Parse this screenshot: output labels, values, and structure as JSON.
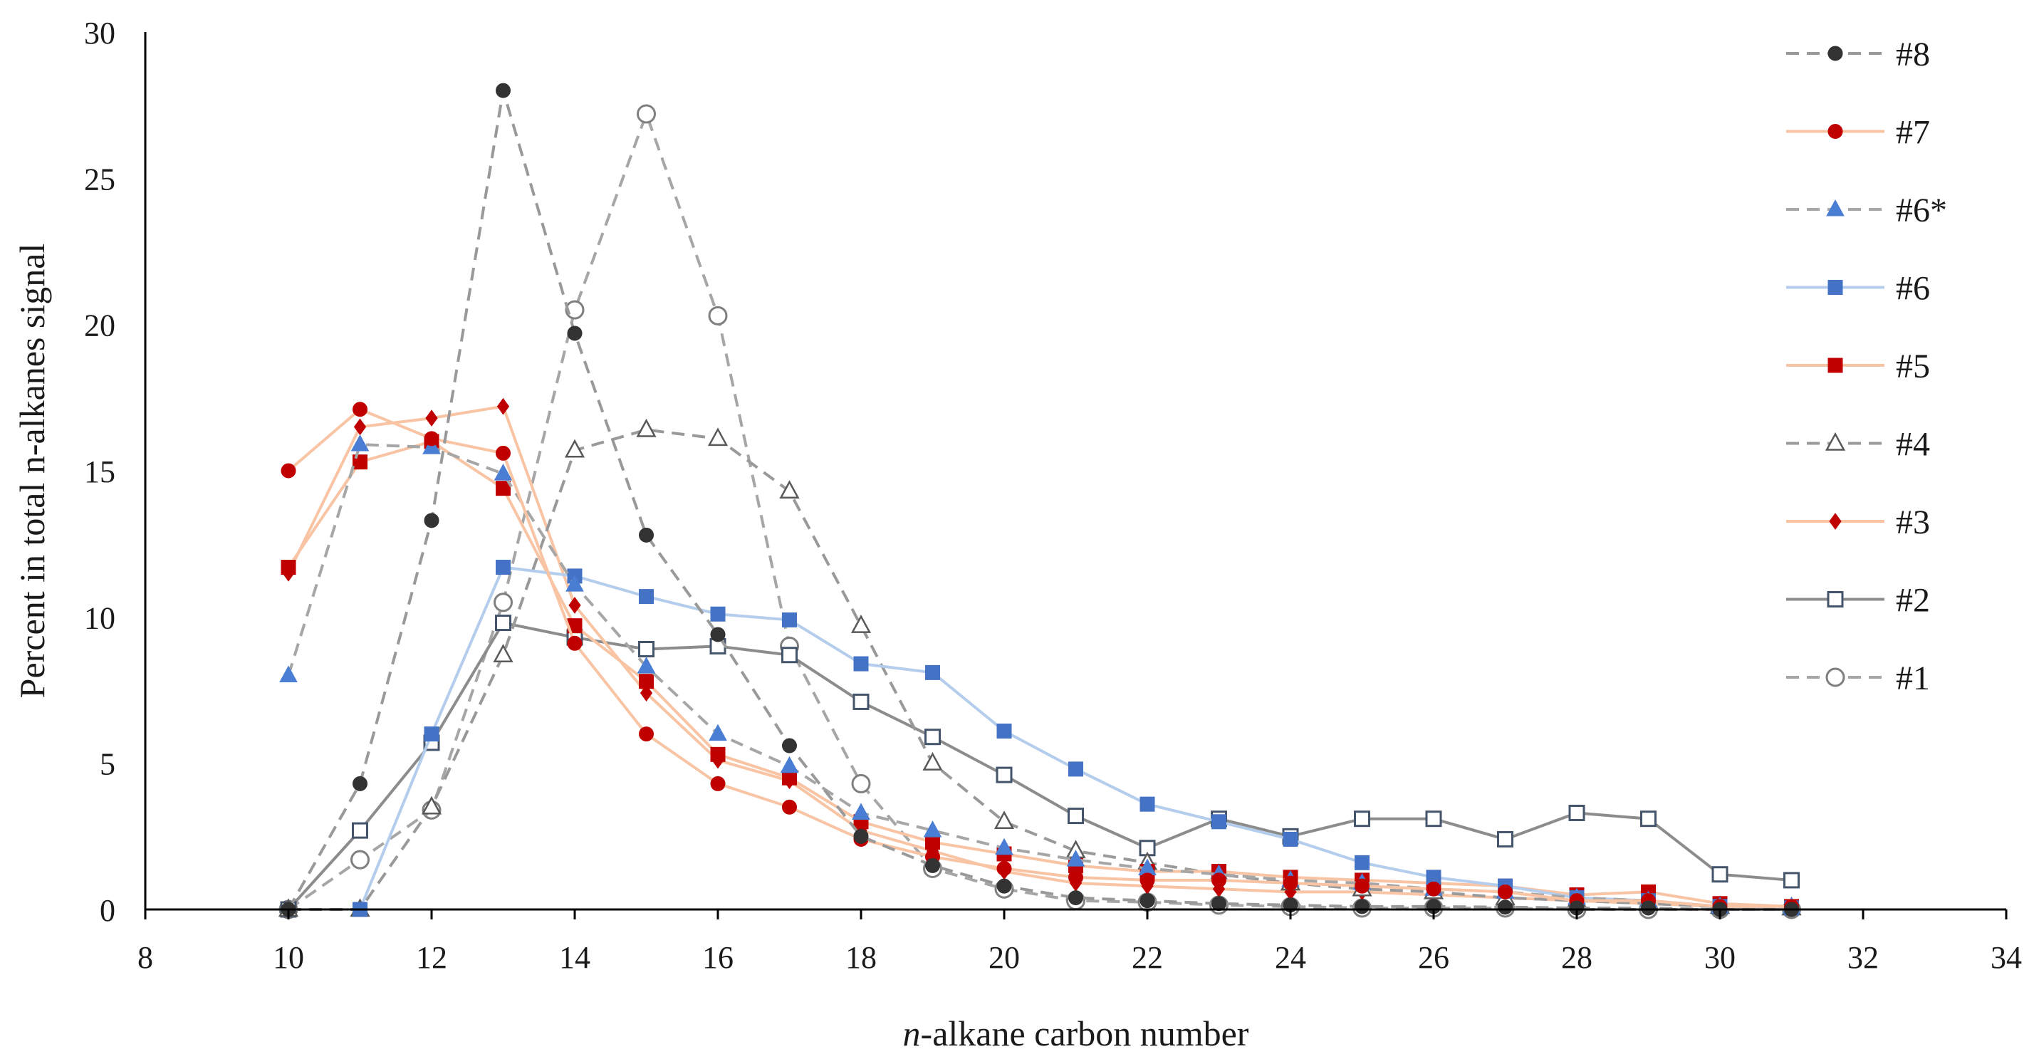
{
  "chart_data": {
    "type": "line",
    "title": "",
    "xlabel_italic": "n",
    "xlabel_rest": "-alkane carbon number",
    "ylabel": "Percent in total n-alkanes signal",
    "xlim": [
      8,
      34
    ],
    "ylim": [
      0,
      30
    ],
    "xticks": [
      8,
      10,
      12,
      14,
      16,
      18,
      20,
      22,
      24,
      26,
      28,
      30,
      32,
      34
    ],
    "yticks": [
      0,
      5,
      10,
      15,
      20,
      25,
      30
    ],
    "grid": false,
    "legend_position": "right",
    "series": [
      {
        "name": "#8",
        "line_color": "#999999",
        "dash": true,
        "marker": "circle",
        "marker_fill": "#333333",
        "marker_stroke": "#333333",
        "x": [
          10,
          11,
          12,
          13,
          14,
          15,
          16,
          17,
          18,
          19,
          20,
          21,
          22,
          23,
          24,
          25,
          26,
          27,
          28,
          29,
          30,
          31
        ],
        "y": [
          0,
          4.3,
          13.3,
          28.0,
          19.7,
          12.8,
          9.4,
          5.6,
          2.5,
          1.5,
          0.8,
          0.4,
          0.3,
          0.2,
          0.15,
          0.1,
          0.1,
          0.08,
          0.05,
          0.05,
          0,
          0
        ]
      },
      {
        "name": "#7",
        "line_color": "#f8c4a4",
        "dash": false,
        "marker": "circle",
        "marker_fill": "#c00000",
        "marker_stroke": "#c00000",
        "x": [
          10,
          11,
          12,
          13,
          14,
          15,
          16,
          17,
          18,
          19,
          20,
          21,
          22,
          23,
          24,
          25,
          26,
          27,
          28,
          29,
          30,
          31
        ],
        "y": [
          15.0,
          17.1,
          16.1,
          15.6,
          9.1,
          6.0,
          4.3,
          3.5,
          2.4,
          1.8,
          1.4,
          1.1,
          1.0,
          1.0,
          0.9,
          0.8,
          0.7,
          0.6,
          0.3,
          0.3,
          0.1,
          0.1
        ]
      },
      {
        "name": "#6*",
        "line_color": "#a6a6a6",
        "dash": true,
        "marker": "triangle",
        "marker_fill": "#4a7ed4",
        "marker_stroke": "#4a7ed4",
        "x": [
          10,
          11,
          12,
          13,
          14,
          15,
          16,
          17,
          18,
          19,
          20,
          21,
          22,
          23,
          24,
          25,
          26,
          27,
          28,
          29,
          30,
          31
        ],
        "y": [
          8.0,
          15.9,
          15.8,
          14.9,
          11.1,
          8.3,
          6.0,
          4.9,
          3.3,
          2.7,
          2.1,
          1.7,
          1.4,
          1.2,
          1.0,
          0.9,
          0.7,
          0.6,
          0.4,
          0.3,
          0.1,
          0.1
        ]
      },
      {
        "name": "#6",
        "line_color": "#b4cdec",
        "dash": false,
        "marker": "square",
        "marker_fill": "#4472c4",
        "marker_stroke": "#4472c4",
        "x": [
          11,
          12,
          13,
          14,
          15,
          16,
          17,
          18,
          19,
          20,
          21,
          22,
          23,
          24,
          25,
          26,
          27,
          28,
          29,
          30,
          31
        ],
        "y": [
          0,
          6.0,
          11.7,
          11.4,
          10.7,
          10.1,
          9.9,
          8.4,
          8.1,
          6.1,
          4.8,
          3.6,
          3.0,
          2.4,
          1.6,
          1.1,
          0.8,
          0.4,
          0.3,
          0.1,
          0.05
        ]
      },
      {
        "name": "#5",
        "line_color": "#f8c4a4",
        "dash": false,
        "marker": "square",
        "marker_fill": "#c00000",
        "marker_stroke": "#c00000",
        "x": [
          10,
          11,
          12,
          13,
          14,
          15,
          16,
          17,
          18,
          19,
          20,
          21,
          22,
          23,
          24,
          25,
          26,
          27,
          28,
          29,
          30,
          31
        ],
        "y": [
          11.7,
          15.3,
          16.0,
          14.4,
          9.7,
          7.8,
          5.3,
          4.5,
          3.0,
          2.3,
          1.9,
          1.5,
          1.3,
          1.3,
          1.1,
          1.0,
          0.9,
          0.8,
          0.5,
          0.6,
          0.2,
          0.1
        ]
      },
      {
        "name": "#4",
        "line_color": "#999999",
        "dash": true,
        "marker": "triangle-open",
        "marker_fill": "#ffffff",
        "marker_stroke": "#595959",
        "x": [
          10,
          11,
          12,
          13,
          14,
          15,
          16,
          17,
          18,
          19,
          20,
          21,
          22,
          23,
          24,
          25,
          26,
          27,
          28,
          29,
          30,
          31
        ],
        "y": [
          0,
          0,
          3.5,
          8.7,
          15.7,
          16.4,
          16.1,
          14.3,
          9.7,
          5.0,
          3.0,
          2.0,
          1.6,
          1.2,
          0.9,
          0.7,
          0.6,
          0.4,
          0.3,
          0.2,
          0.1,
          0.05
        ]
      },
      {
        "name": "#3",
        "line_color": "#f8c4a4",
        "dash": false,
        "marker": "diamond",
        "marker_fill": "#c00000",
        "marker_stroke": "#c00000",
        "x": [
          10,
          11,
          12,
          13,
          14,
          15,
          16,
          17,
          18,
          19,
          20,
          21,
          22,
          23,
          24,
          25,
          26,
          27,
          28,
          29,
          30,
          31
        ],
        "y": [
          11.5,
          16.5,
          16.8,
          17.2,
          10.4,
          7.4,
          5.1,
          4.4,
          2.7,
          2.0,
          1.3,
          0.9,
          0.8,
          0.7,
          0.6,
          0.6,
          0.5,
          0.4,
          0.3,
          0.2,
          0.1,
          0.05
        ]
      },
      {
        "name": "#2",
        "line_color": "#8c8c8c",
        "dash": false,
        "marker": "square-open",
        "marker_fill": "#ffffff",
        "marker_stroke": "#44546a",
        "x": [
          10,
          11,
          12,
          13,
          14,
          15,
          16,
          17,
          18,
          19,
          20,
          21,
          22,
          23,
          24,
          25,
          26,
          27,
          28,
          29,
          30,
          31
        ],
        "y": [
          0,
          2.7,
          5.7,
          9.8,
          9.3,
          8.9,
          9.0,
          8.7,
          7.1,
          5.9,
          4.6,
          3.2,
          2.1,
          3.1,
          2.5,
          3.1,
          3.1,
          2.4,
          3.3,
          3.1,
          1.2,
          1.0
        ]
      },
      {
        "name": "#1",
        "line_color": "#a6a6a6",
        "dash": true,
        "marker": "circle-open",
        "marker_fill": "#ffffff",
        "marker_stroke": "#7f7f7f",
        "x": [
          10,
          11,
          12,
          13,
          14,
          15,
          16,
          17,
          18,
          19,
          20,
          21,
          22,
          23,
          24,
          25,
          26,
          27,
          28,
          29,
          30,
          31
        ],
        "y": [
          0,
          1.7,
          3.4,
          10.5,
          20.5,
          27.2,
          20.3,
          9.0,
          4.3,
          1.4,
          0.7,
          0.3,
          0.25,
          0.15,
          0.1,
          0.05,
          0.05,
          0.05,
          0,
          0,
          0,
          0
        ]
      }
    ]
  }
}
